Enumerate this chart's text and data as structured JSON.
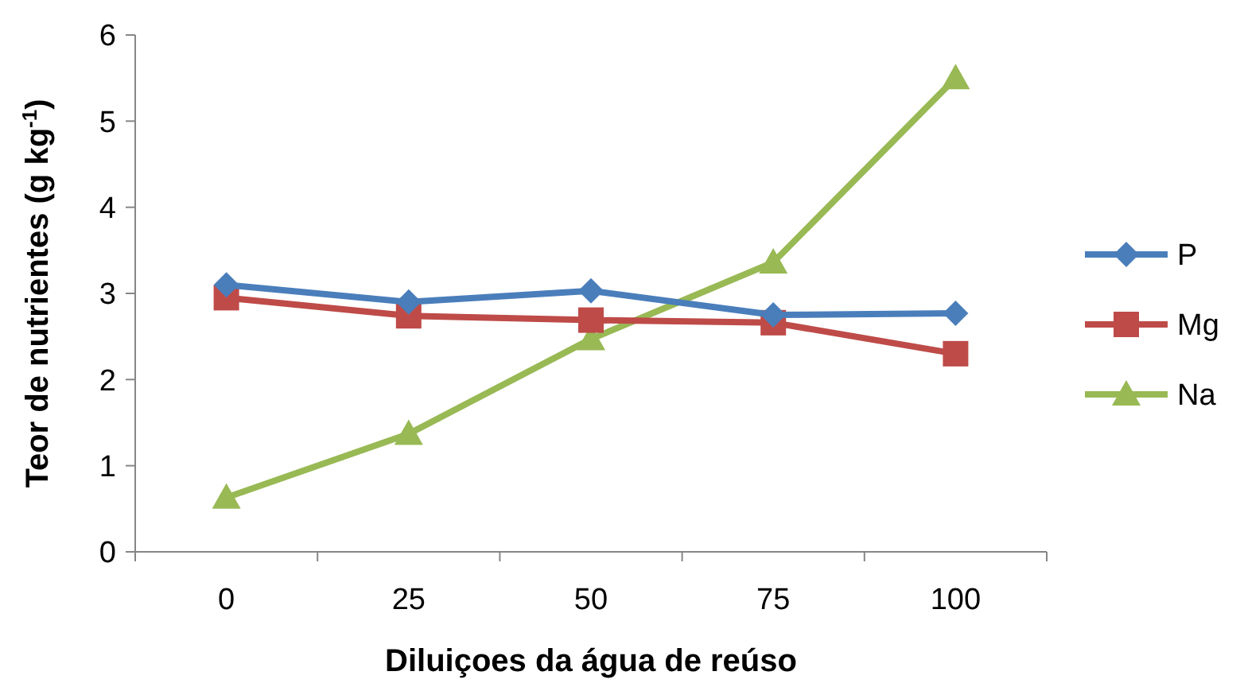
{
  "chart_data": {
    "type": "line",
    "xlabel": "Diluiçoes da água de reúso",
    "ylabel": "Teor de nutrientes (g kg$^{-1}$)",
    "categories": [
      "0",
      "25",
      "50",
      "75",
      "100"
    ],
    "ylim": [
      0,
      6
    ],
    "yticks": [
      0,
      1,
      2,
      3,
      4,
      5,
      6
    ],
    "grid": false,
    "legend": "right",
    "series": [
      {
        "name": "P",
        "color": "#4a7ebb",
        "marker": "diamond",
        "values": [
          3.1,
          2.9,
          3.03,
          2.75,
          2.77
        ]
      },
      {
        "name": "Mg",
        "color": "#be4b48",
        "marker": "square",
        "values": [
          2.95,
          2.74,
          2.69,
          2.66,
          2.3
        ]
      },
      {
        "name": "Na",
        "color": "#98b954",
        "marker": "triangle",
        "values": [
          0.63,
          1.37,
          2.47,
          3.36,
          5.5
        ]
      }
    ]
  }
}
